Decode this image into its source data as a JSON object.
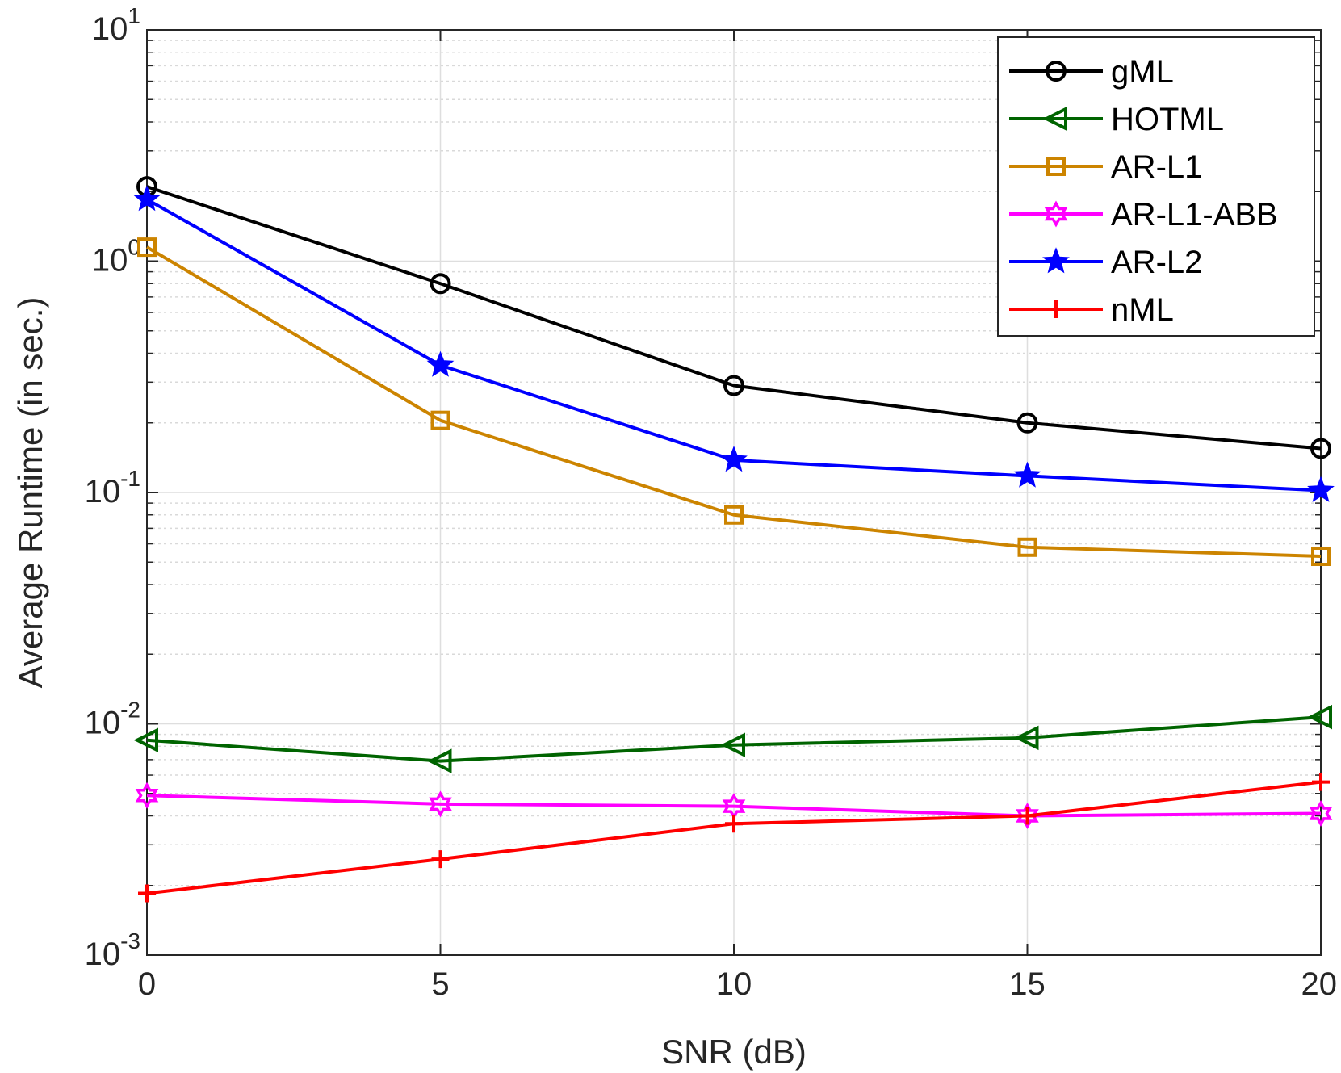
{
  "chart_data": {
    "type": "line",
    "title": "",
    "xlabel": "SNR (dB)",
    "ylabel": "Average Runtime (in sec.)",
    "x": [
      0,
      5,
      10,
      15,
      20
    ],
    "xlim": [
      0,
      20
    ],
    "ylim": [
      0.001,
      10
    ],
    "yscale": "log",
    "x_ticks": [
      "0",
      "5",
      "10",
      "15",
      "20"
    ],
    "y_ticks": [
      {
        "base": "10",
        "exp": "-3",
        "value": 0.001
      },
      {
        "base": "10",
        "exp": "-2",
        "value": 0.01
      },
      {
        "base": "10",
        "exp": "-1",
        "value": 0.1
      },
      {
        "base": "10",
        "exp": "0",
        "value": 1
      },
      {
        "base": "10",
        "exp": "1",
        "value": 10
      }
    ],
    "grid": true,
    "legend_position": "top-right",
    "series": [
      {
        "name": "gML",
        "color": "#000000",
        "marker": "circle",
        "values": [
          2.1,
          0.8,
          0.29,
          0.2,
          0.155
        ]
      },
      {
        "name": "HOTML",
        "color": "#006400",
        "marker": "triangle-left",
        "values": [
          0.0085,
          0.0069,
          0.0081,
          0.0087,
          0.0107
        ]
      },
      {
        "name": "AR-L1",
        "color": "#CC8400",
        "marker": "square",
        "values": [
          1.15,
          0.205,
          0.08,
          0.058,
          0.053
        ]
      },
      {
        "name": "AR-L1-ABB",
        "color": "#FF00FF",
        "marker": "hexagram",
        "values": [
          0.0049,
          0.0045,
          0.0044,
          0.004,
          0.0041
        ]
      },
      {
        "name": "AR-L2",
        "color": "#0000FF",
        "marker": "pentagram",
        "values": [
          1.85,
          0.355,
          0.138,
          0.118,
          0.102
        ]
      },
      {
        "name": "nML",
        "color": "#FF0000",
        "marker": "plus",
        "values": [
          0.00185,
          0.0026,
          0.0037,
          0.004,
          0.0056
        ]
      }
    ]
  }
}
